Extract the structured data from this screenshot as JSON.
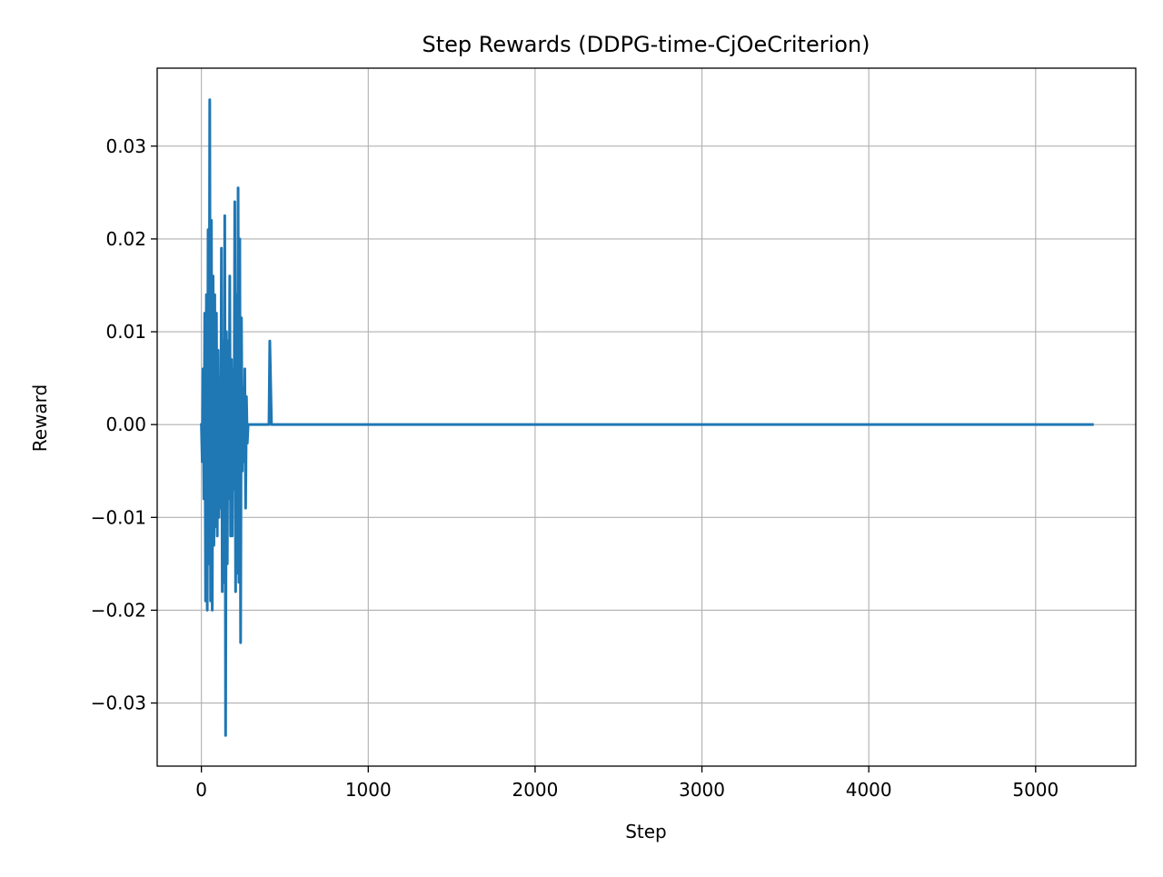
{
  "chart_data": {
    "type": "line",
    "title": "Step Rewards (DDPG-time-CjOeCriterion)",
    "xlabel": "Step",
    "ylabel": "Reward",
    "xlim": [
      -265,
      5600
    ],
    "ylim": [
      -0.0368,
      0.0384
    ],
    "grid": true,
    "xticks": [
      0,
      1000,
      2000,
      3000,
      4000,
      5000
    ],
    "xtick_labels": [
      "0",
      "1000",
      "2000",
      "3000",
      "4000",
      "5000"
    ],
    "yticks": [
      -0.03,
      -0.02,
      -0.01,
      0.0,
      0.01,
      0.02,
      0.03
    ],
    "ytick_labels": [
      "−0.03",
      "−0.02",
      "−0.01",
      "0.00",
      "0.01",
      "0.02",
      "0.03"
    ],
    "series": [
      {
        "color": "#1f77b4",
        "x": [
          0,
          5,
          10,
          15,
          20,
          25,
          30,
          35,
          40,
          45,
          50,
          55,
          60,
          65,
          70,
          75,
          80,
          85,
          90,
          95,
          100,
          105,
          110,
          115,
          120,
          125,
          130,
          135,
          140,
          145,
          150,
          155,
          160,
          165,
          170,
          175,
          180,
          185,
          190,
          195,
          200,
          205,
          210,
          215,
          220,
          225,
          230,
          235,
          240,
          245,
          250,
          255,
          260,
          265,
          270,
          275,
          280,
          285,
          290,
          295,
          300,
          305,
          310,
          315,
          320,
          325,
          330,
          335,
          340,
          345,
          350,
          355,
          360,
          370,
          380,
          390,
          400,
          405,
          410,
          420,
          440,
          500,
          1000,
          2000,
          3000,
          4000,
          5000,
          5340
        ],
        "y": [
          0.0,
          -0.004,
          0.006,
          -0.008,
          0.012,
          -0.019,
          0.014,
          -0.02,
          0.021,
          -0.015,
          0.035,
          -0.019,
          0.022,
          -0.02,
          0.016,
          -0.013,
          0.014,
          -0.011,
          0.012,
          -0.012,
          0.008,
          -0.01,
          0.005,
          -0.009,
          0.019,
          -0.018,
          0.009,
          -0.017,
          0.0225,
          -0.0335,
          0.01,
          -0.015,
          0.009,
          -0.008,
          0.016,
          -0.012,
          0.007,
          -0.012,
          0.006,
          -0.007,
          0.024,
          -0.018,
          0.014,
          -0.016,
          0.0255,
          -0.017,
          0.02,
          -0.0235,
          0.0115,
          -0.005,
          0.004,
          -0.004,
          0.006,
          -0.009,
          0.003,
          -0.002,
          0.0,
          0.0,
          0.0,
          0.0,
          0.0,
          0.0,
          0.0,
          0.0,
          0.0,
          0.0,
          0.0,
          0.0,
          0.0,
          0.0,
          0.0,
          0.0,
          0.0,
          0.0,
          0.0,
          0.0,
          0.0,
          0.0,
          0.009,
          0.0,
          0.0,
          0.0,
          0.0,
          0.0,
          0.0,
          0.0,
          0.0,
          0.0
        ]
      }
    ]
  }
}
